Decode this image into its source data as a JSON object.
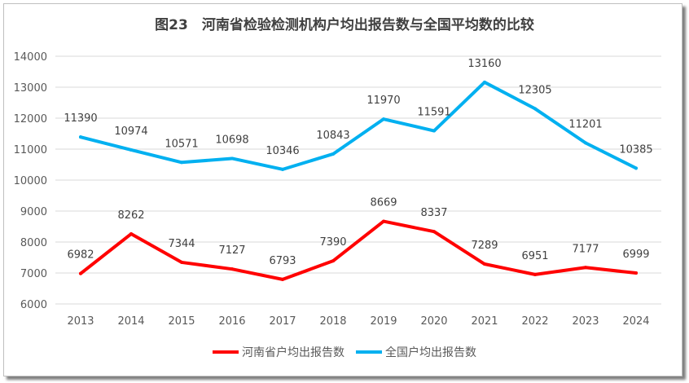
{
  "chart_data": {
    "type": "line",
    "title": "图23　河南省检验检测机构户均出报告数与全国平均数的比较",
    "categories": [
      "2013",
      "2014",
      "2015",
      "2016",
      "2017",
      "2018",
      "2019",
      "2020",
      "2021",
      "2022",
      "2023",
      "2024"
    ],
    "ylim": [
      6000,
      14000
    ],
    "yticks": [
      6000,
      7000,
      8000,
      9000,
      10000,
      11000,
      12000,
      13000,
      14000
    ],
    "grid": true,
    "legend_position": "bottom",
    "series": [
      {
        "name": "河南省户均出报告数",
        "color": "#FF0000",
        "values": [
          6982,
          8262,
          7344,
          7127,
          6793,
          7390,
          8669,
          8337,
          7289,
          6951,
          7177,
          6999
        ]
      },
      {
        "name": "全国户均出报告数",
        "color": "#00B0F0",
        "values": [
          11390,
          10974,
          10571,
          10698,
          10346,
          10843,
          11970,
          11591,
          13160,
          12305,
          11201,
          10385
        ]
      }
    ]
  }
}
